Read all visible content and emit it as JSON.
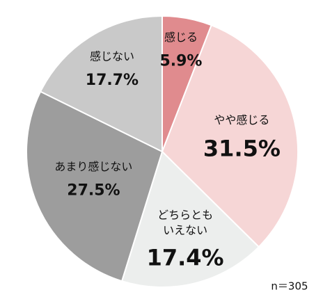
{
  "chart_data": {
    "type": "pie",
    "categories": [
      "感じる",
      "やや感じる",
      "どちらとも\nいえない",
      "あまり感じない",
      "感じない"
    ],
    "values": [
      5.9,
      31.5,
      17.4,
      27.5,
      17.7
    ],
    "value_labels": [
      "5.9%",
      "31.5%",
      "17.4%",
      "27.5%",
      "17.7%"
    ],
    "colors": [
      "#e08b8e",
      "#f6d6d6",
      "#eceeed",
      "#9d9d9d",
      "#c9c9c9"
    ],
    "note": "n＝305"
  }
}
